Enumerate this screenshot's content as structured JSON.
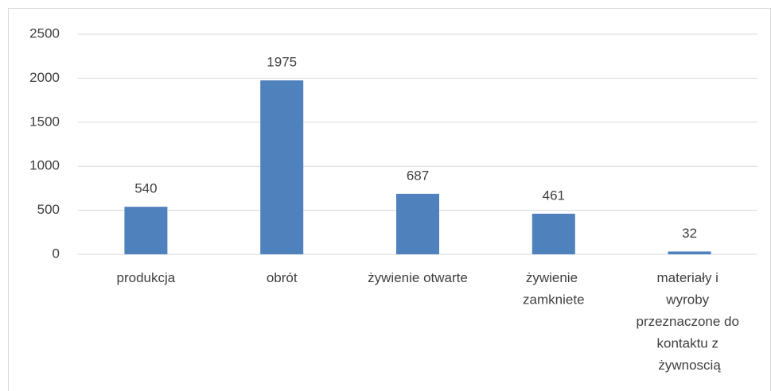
{
  "chart_data": {
    "type": "bar",
    "categories": [
      "produkcja",
      "obrót",
      "żywienie otwarte",
      "żywienie zamkniete",
      "materiały i wyroby przeznaczone do kontaktu z żywnoscią"
    ],
    "values": [
      540,
      1975,
      687,
      461,
      32
    ],
    "color": "#4f81bd",
    "ylim": [
      0,
      2500
    ],
    "yticks": [
      0,
      500,
      1000,
      1500,
      2000,
      2500
    ],
    "grid": true
  }
}
